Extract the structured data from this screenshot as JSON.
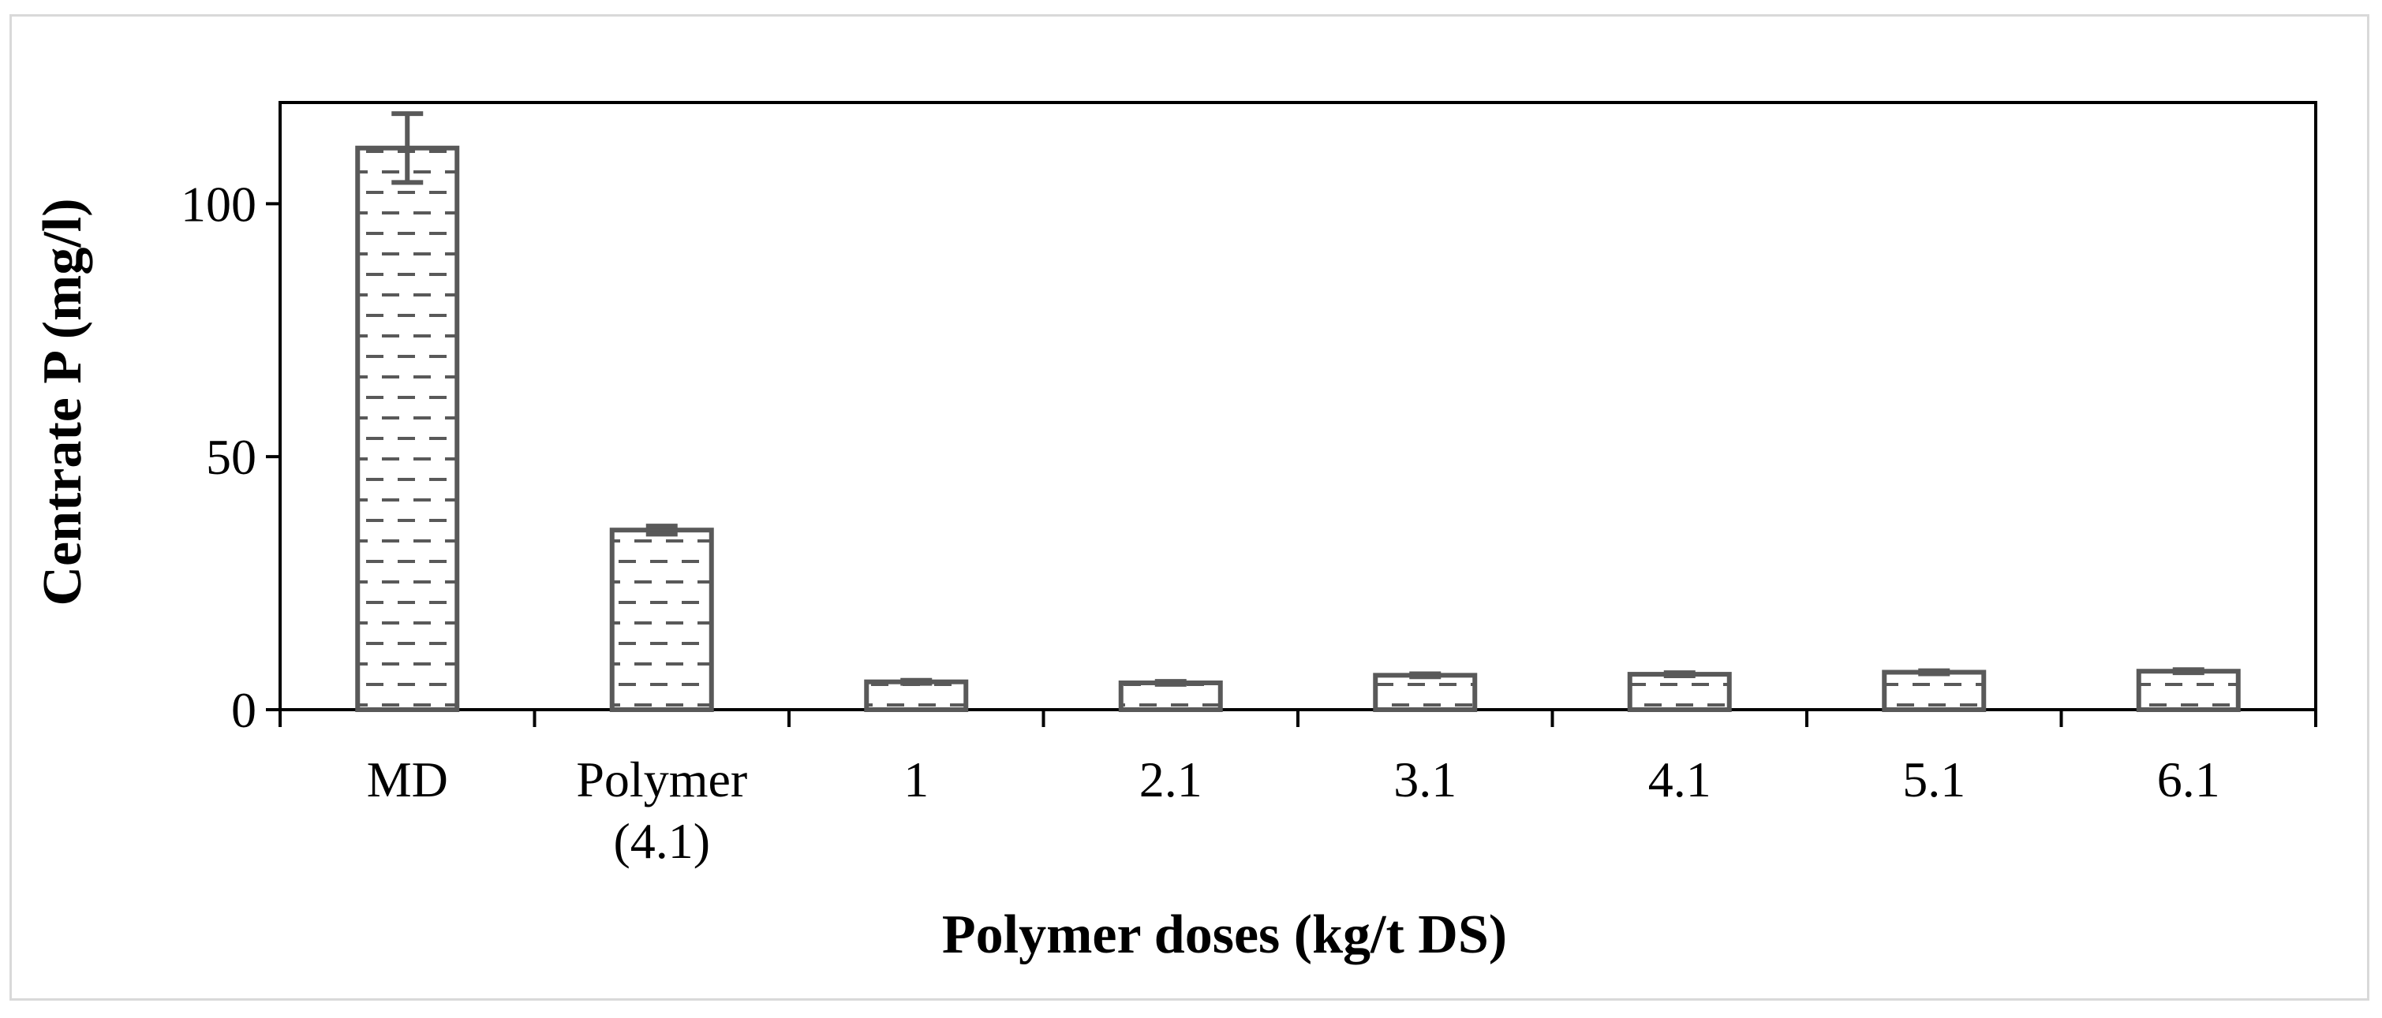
{
  "chart_data": {
    "type": "bar",
    "title": "",
    "xlabel": "Polymer doses (kg/t DS)",
    "ylabel": "Centrate P (mg/l)",
    "ylim": [
      0,
      120
    ],
    "yticks": [
      0,
      50,
      100
    ],
    "grid": false,
    "legend": "none",
    "categories": [
      [
        "MD"
      ],
      [
        "Polymer",
        "(4.1)"
      ],
      [
        "1"
      ],
      [
        "2.1"
      ],
      [
        "3.1"
      ],
      [
        "4.1"
      ],
      [
        "5.1"
      ],
      [
        "6.1"
      ]
    ],
    "values": [
      111,
      35.5,
      5.5,
      5.3,
      6.8,
      7.0,
      7.4,
      7.6
    ],
    "errors": [
      6.8,
      0.8,
      0.3,
      0.3,
      0.3,
      0.3,
      0.3,
      0.3
    ],
    "colors": {
      "bar_stroke": "#595959",
      "axis": "#000000",
      "hatch": "#595959"
    }
  }
}
